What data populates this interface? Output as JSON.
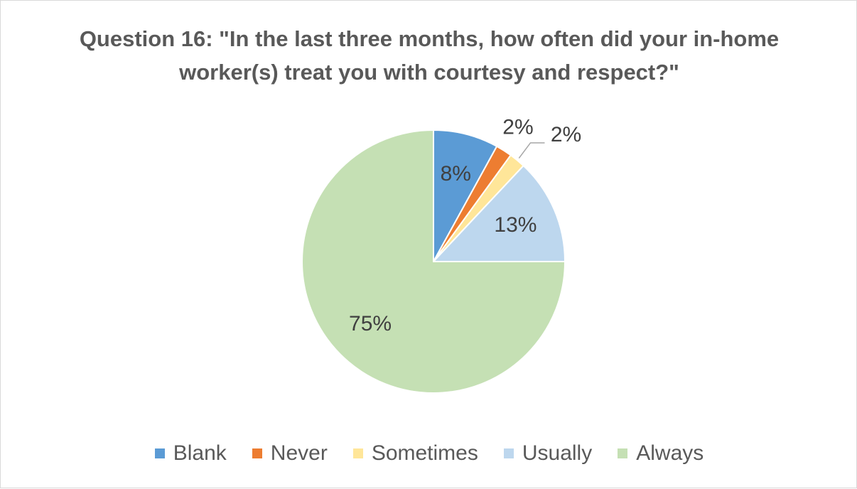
{
  "chart_data": {
    "type": "pie",
    "title": "Question 16: \"In the last three months, how often did your in-home worker(s) treat you with courtesy and respect?\"",
    "categories": [
      "Blank",
      "Never",
      "Sometimes",
      "Usually",
      "Always"
    ],
    "values": [
      8,
      2,
      2,
      13,
      75
    ],
    "value_labels": [
      "8%",
      "2%",
      "2%",
      "13%",
      "75%"
    ],
    "colors": [
      "#5b9bd5",
      "#ed7d31",
      "#ffe699",
      "#bdd7ee",
      "#c5e0b4"
    ],
    "legend": "bottom"
  }
}
